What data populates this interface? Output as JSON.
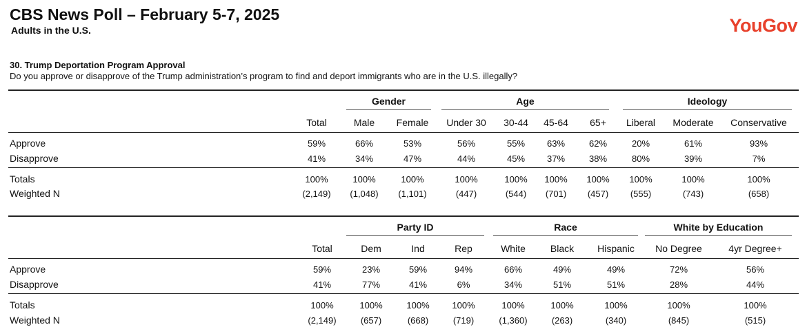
{
  "header": {
    "title": "CBS News Poll – February 5-7, 2025",
    "subtitle": "Adults in the U.S.",
    "logo": "YouGov"
  },
  "question": {
    "title": "30. Trump Deportation Program Approval",
    "text": "Do you approve or disapprove of the Trump administration’s program to find and deport immigrants who are in the U.S. illegally?"
  },
  "rows": [
    "Approve",
    "Disapprove",
    "Totals",
    "Weighted N"
  ],
  "table1": {
    "groups": [
      "Gender",
      "Age",
      "Ideology"
    ],
    "columns": [
      {
        "label": "Total",
        "values": [
          "59%",
          "41%",
          "100%",
          "(2,149)"
        ]
      },
      {
        "label": "Male",
        "values": [
          "66%",
          "34%",
          "100%",
          "(1,048)"
        ]
      },
      {
        "label": "Female",
        "values": [
          "53%",
          "47%",
          "100%",
          "(1,101)"
        ]
      },
      {
        "label": "Under 30",
        "values": [
          "56%",
          "44%",
          "100%",
          "(447)"
        ]
      },
      {
        "label": "30-44",
        "values": [
          "55%",
          "45%",
          "100%",
          "(544)"
        ]
      },
      {
        "label": "45-64",
        "values": [
          "63%",
          "37%",
          "100%",
          "(701)"
        ]
      },
      {
        "label": "65+",
        "values": [
          "62%",
          "38%",
          "100%",
          "(457)"
        ]
      },
      {
        "label": "Liberal",
        "values": [
          "20%",
          "80%",
          "100%",
          "(555)"
        ]
      },
      {
        "label": "Moderate",
        "values": [
          "61%",
          "39%",
          "100%",
          "(743)"
        ]
      },
      {
        "label": "Conservative",
        "values": [
          "93%",
          "7%",
          "100%",
          "(658)"
        ]
      }
    ]
  },
  "table2": {
    "groups": [
      "Party ID",
      "Race",
      "White by Education"
    ],
    "columns": [
      {
        "label": "Total",
        "values": [
          "59%",
          "41%",
          "100%",
          "(2,149)"
        ]
      },
      {
        "label": "Dem",
        "values": [
          "23%",
          "77%",
          "100%",
          "(657)"
        ]
      },
      {
        "label": "Ind",
        "values": [
          "59%",
          "41%",
          "100%",
          "(668)"
        ]
      },
      {
        "label": "Rep",
        "values": [
          "94%",
          "6%",
          "100%",
          "(719)"
        ]
      },
      {
        "label": "White",
        "values": [
          "66%",
          "34%",
          "100%",
          "(1,360)"
        ]
      },
      {
        "label": "Black",
        "values": [
          "49%",
          "51%",
          "100%",
          "(263)"
        ]
      },
      {
        "label": "Hispanic",
        "values": [
          "49%",
          "51%",
          "100%",
          "(340)"
        ]
      },
      {
        "label": "No Degree",
        "values": [
          "72%",
          "28%",
          "100%",
          "(845)"
        ]
      },
      {
        "label": "4yr Degree+",
        "values": [
          "56%",
          "44%",
          "100%",
          "(515)"
        ]
      }
    ]
  }
}
